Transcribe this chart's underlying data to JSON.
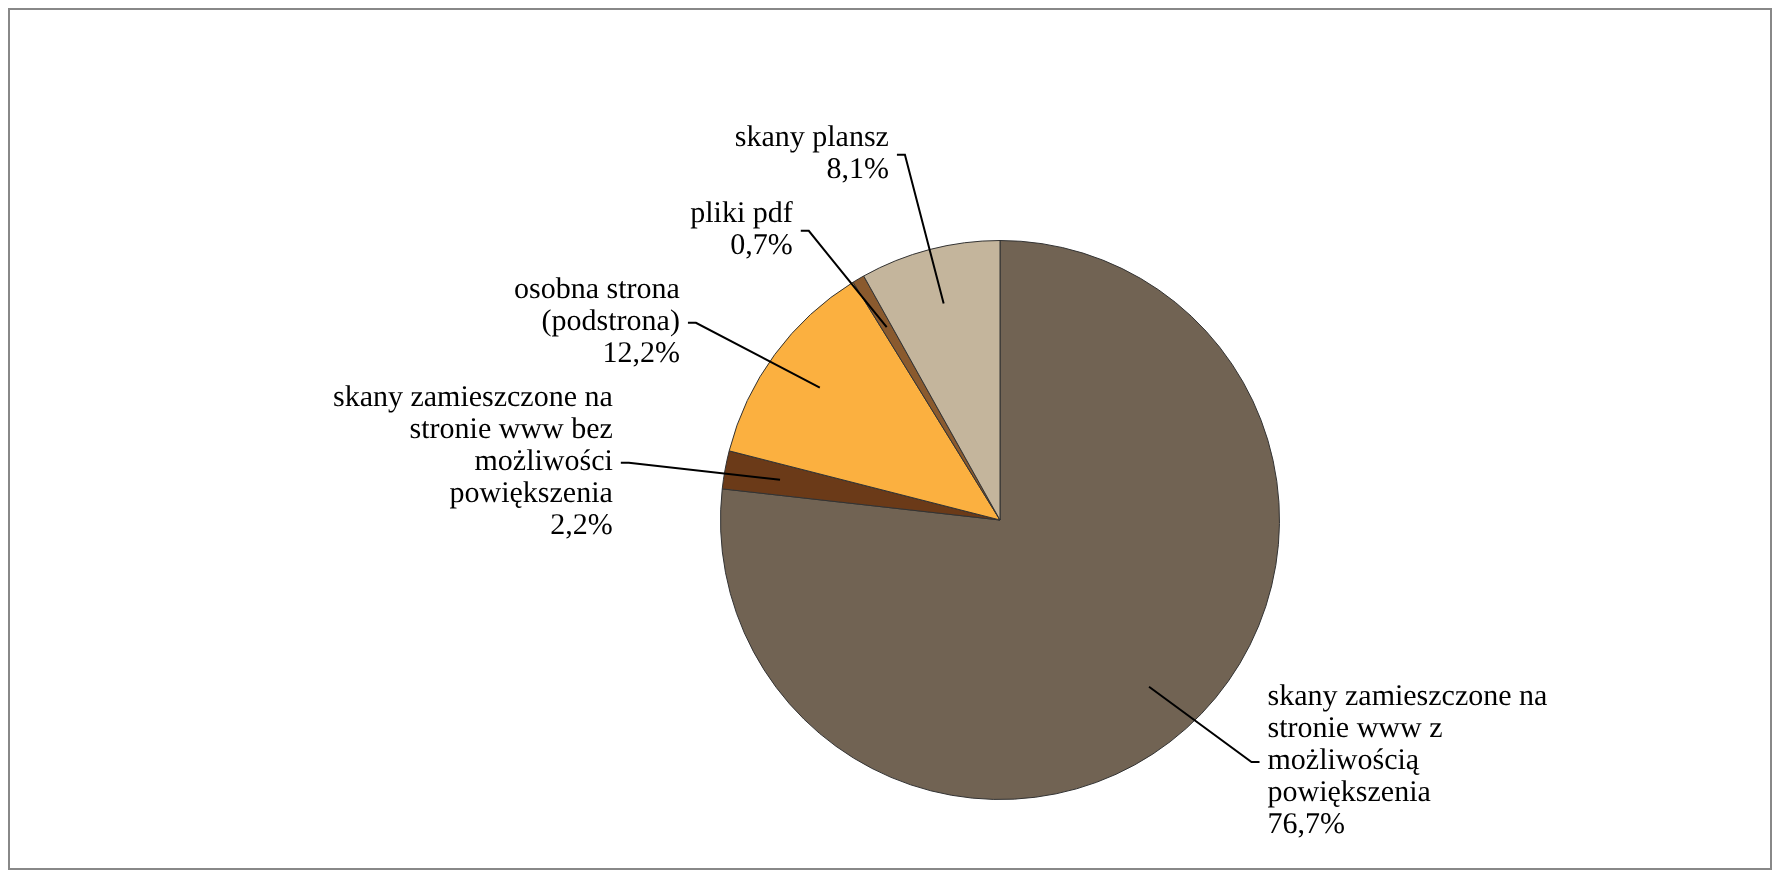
{
  "chart_data": {
    "type": "pie",
    "categories": [
      "skany zamieszczone na stronie www z możliwością powiększenia",
      "skany zamieszczone na stronie www bez możliwości powiększenia",
      "osobna strona (podstrona)",
      "pliki pdf",
      "skany plansz"
    ],
    "values": [
      76.7,
      2.2,
      12.2,
      0.7,
      8.1
    ],
    "value_labels": [
      "76,7%",
      "2,2%",
      "12,2%",
      "0,7%",
      "8,1%"
    ],
    "colors": [
      "#716353",
      "#6b3a18",
      "#fbb040",
      "#8a5a2e",
      "#c4b59c"
    ],
    "legend": false
  }
}
